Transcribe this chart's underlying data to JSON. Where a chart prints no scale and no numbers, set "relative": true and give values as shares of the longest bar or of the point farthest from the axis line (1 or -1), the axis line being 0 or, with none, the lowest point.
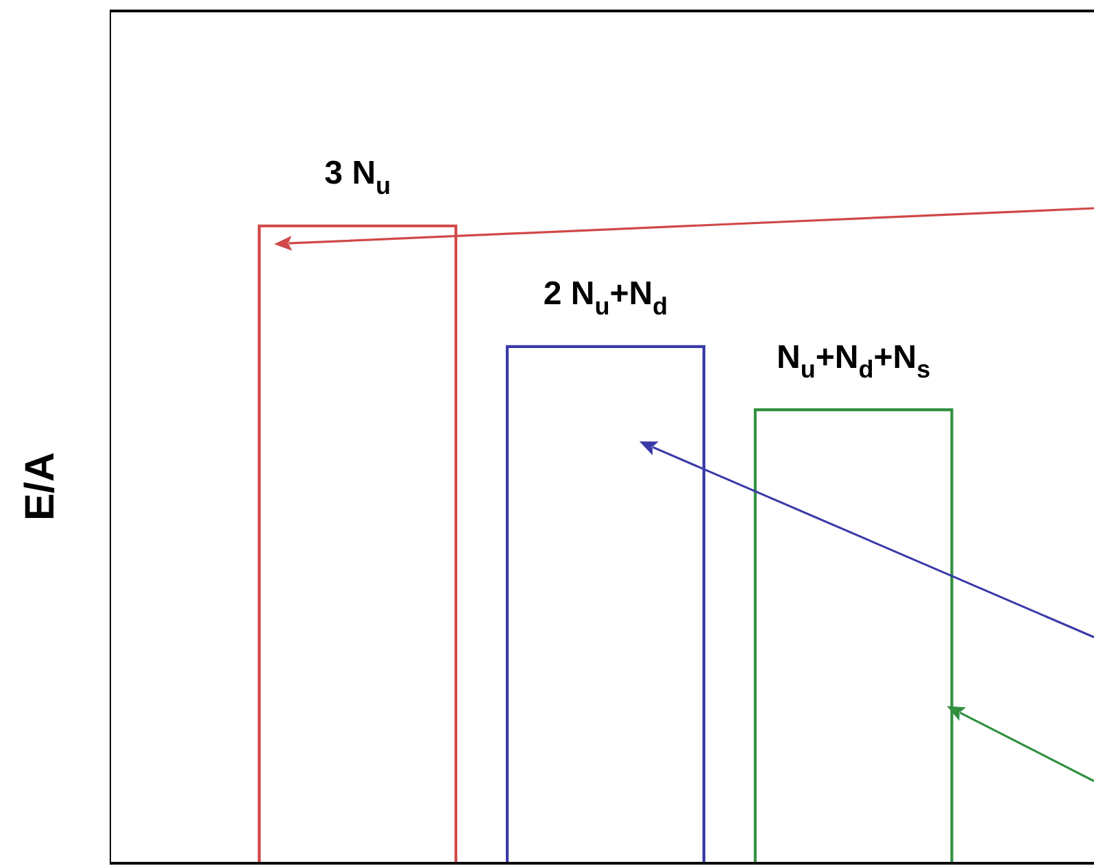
{
  "chart_data": {
    "type": "bar",
    "relative": true,
    "ylabel": "E/A",
    "tick_labels": false,
    "legend": false,
    "data_labels": false,
    "categories": [
      "3 N$_{u}$",
      "2 N$_{u}$+N$_{d}$",
      "N$_{u}$+N$_{d}$+N$_{s}$"
    ],
    "values": [
      1,
      0.811,
      0.712
    ],
    "colors": [
      "#d04848",
      "#3a3aa8",
      "#2f8f3f"
    ]
  }
}
